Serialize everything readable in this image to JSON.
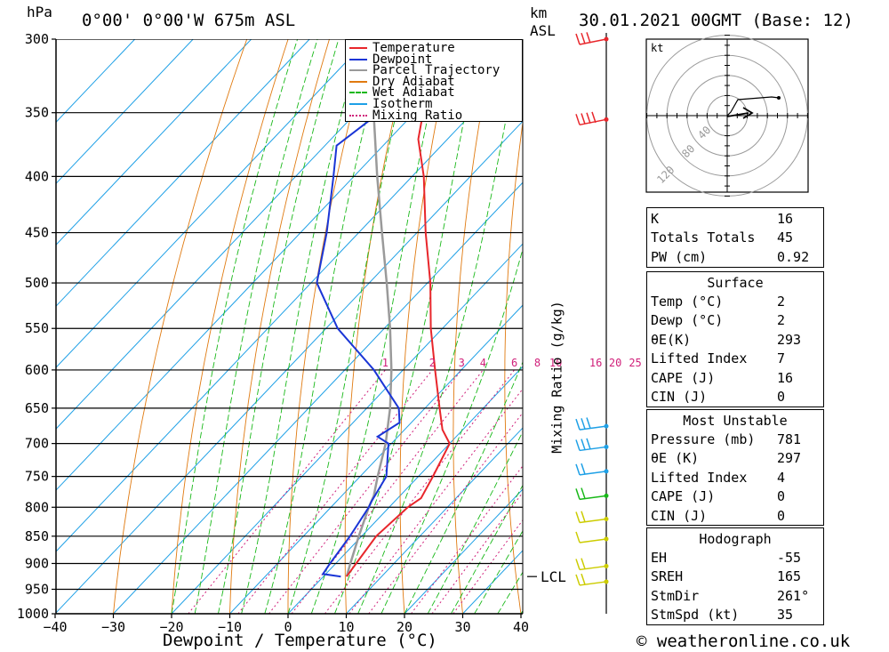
{
  "header": {
    "location": "0°00' 0°00'W 675m ASL",
    "hpa_label": "hPa",
    "km_label": "km",
    "asl_label": "ASL",
    "datetime": "30.01.2021 00GMT (Base: 12)"
  },
  "footer": {
    "copyright": "© weatheronline.co.uk"
  },
  "colors": {
    "temperature": "#e8262b",
    "dewpoint": "#1a35d6",
    "parcel": "#9a9a9a",
    "dry_adiabat": "#e07a10",
    "wet_adiabat": "#18b818",
    "isotherm": "#1ea0e6",
    "mixing_ratio": "#d0207a"
  },
  "legend": [
    "Temperature",
    "Dewpoint",
    "Parcel Trajectory",
    "Dry Adiabat",
    "Wet Adiabat",
    "Isotherm",
    "Mixing Ratio"
  ],
  "chart_data": {
    "type": "line",
    "xlabel": "Dewpoint / Temperature (°C)",
    "ylabel": "hPa",
    "xlim": [
      -40,
      40
    ],
    "ylim": [
      1000,
      300
    ],
    "x_ticks": [
      -40,
      -30,
      -20,
      -10,
      0,
      10,
      20,
      30,
      40
    ],
    "pressure_levels": [
      300,
      350,
      400,
      450,
      500,
      550,
      600,
      650,
      700,
      750,
      800,
      850,
      900,
      950,
      1000
    ],
    "series": [
      {
        "name": "Temperature",
        "pressure": [
          925,
          900,
          850,
          800,
          785,
          750,
          700,
          680,
          650,
          600,
          550,
          500,
          450,
          400,
          370,
          350,
          300
        ],
        "temp": [
          4.0,
          3.5,
          2.5,
          3.2,
          4.0,
          2.5,
          0.0,
          -3.5,
          -7.5,
          -14.5,
          -22.0,
          -29.5,
          -38.5,
          -48.0,
          -55.0,
          -58.5,
          -69.0
        ]
      },
      {
        "name": "Dewpoint",
        "pressure": [
          925,
          920,
          900,
          850,
          800,
          790,
          750,
          700,
          690,
          670,
          650,
          600,
          550,
          500,
          450,
          400,
          375,
          350,
          340,
          320,
          300
        ],
        "temp": [
          3.0,
          -0.5,
          -1.0,
          -2.0,
          -3.5,
          -4.0,
          -5.5,
          -10.5,
          -13.5,
          -12.0,
          -14.5,
          -25.0,
          -38.0,
          -49.0,
          -55.5,
          -63.5,
          -68.0,
          -66.0,
          -69.0,
          -74.0,
          -79.0
        ]
      },
      {
        "name": "Parcel Trajectory",
        "pressure": [
          925,
          900,
          850,
          800,
          781,
          750,
          700,
          650,
          600,
          550,
          500,
          450,
          400,
          350,
          300
        ],
        "temp": [
          4.0,
          2.5,
          -0.5,
          -3.5,
          -4.5,
          -7.0,
          -11.0,
          -16.0,
          -22.0,
          -29.0,
          -37.0,
          -46.0,
          -56.0,
          -67.0,
          -79.0
        ]
      }
    ],
    "mixing_ratio_labels": [
      "1",
      "2",
      "3",
      "4",
      "6",
      "8",
      "10",
      "16",
      "20",
      "25"
    ],
    "mixing_ratio_axis": "Mixing Ratio (g/kg)",
    "km_ticks": [
      {
        "label": "LCL",
        "pressure": 925
      }
    ]
  },
  "hodograph": {
    "units": "kt",
    "ring_labels": [
      "40",
      "80",
      "120"
    ]
  },
  "indices": {
    "general": [
      {
        "label": "K",
        "value": "16"
      },
      {
        "label": "Totals Totals",
        "value": "45"
      },
      {
        "label": "PW (cm)",
        "value": "0.92"
      }
    ],
    "surface_title": "Surface",
    "surface": [
      {
        "label": "Temp (°C)",
        "value": "2"
      },
      {
        "label": "Dewp (°C)",
        "value": "2"
      },
      {
        "label": "θE(K)",
        "value": "293"
      },
      {
        "label": "Lifted Index",
        "value": "7"
      },
      {
        "label": "CAPE (J)",
        "value": "16"
      },
      {
        "label": "CIN (J)",
        "value": "0"
      }
    ],
    "mu_title": "Most Unstable",
    "mu": [
      {
        "label": "Pressure (mb)",
        "value": "781"
      },
      {
        "label": "θE (K)",
        "value": "297"
      },
      {
        "label": "Lifted Index",
        "value": "4"
      },
      {
        "label": "CAPE (J)",
        "value": "0"
      },
      {
        "label": "CIN (J)",
        "value": "0"
      }
    ],
    "hodo_title": "Hodograph",
    "hodo": [
      {
        "label": "EH",
        "value": "-55"
      },
      {
        "label": "SREH",
        "value": "165"
      },
      {
        "label": "StmDir",
        "value": "261°"
      },
      {
        "label": "StmSpd (kt)",
        "value": "35"
      }
    ]
  }
}
